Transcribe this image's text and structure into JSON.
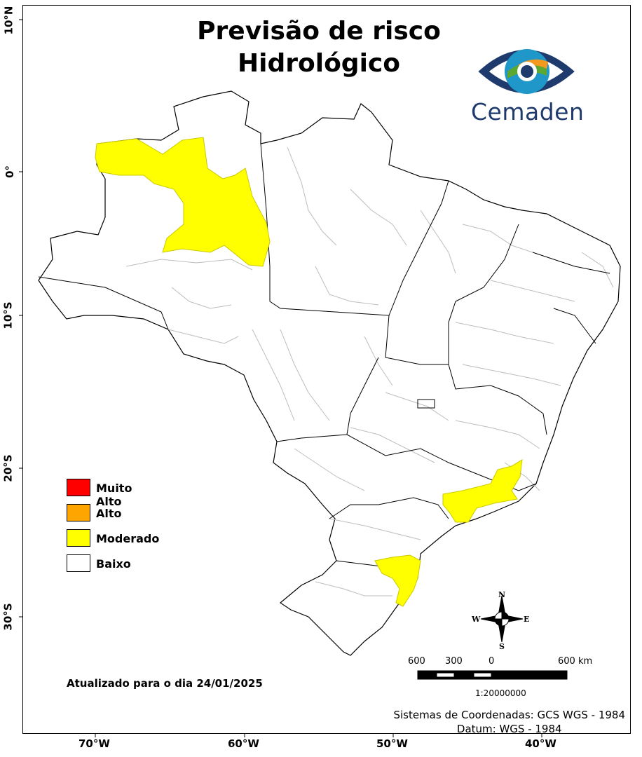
{
  "title_line1": "Previsão de risco",
  "title_line2": "Hidrológico",
  "logo": {
    "text": "Cemaden"
  },
  "legend": [
    {
      "label": "Muito Alto",
      "color": "#ff0000"
    },
    {
      "label": "Alto",
      "color": "#ffa500"
    },
    {
      "label": "Moderado",
      "color": "#ffff00"
    },
    {
      "label": "Baixo",
      "color": "#ffffff"
    }
  ],
  "updated": "Atualizado para o dia 24/01/2025",
  "scale": {
    "labels": [
      "600",
      "300",
      "0",
      "600 km"
    ],
    "ratio": "1:20000000"
  },
  "compass": {
    "n": "N",
    "s": "S",
    "e": "E",
    "w": "W"
  },
  "coordinate_system": {
    "line1": "Sistemas de Coordenadas: GCS WGS - 1984",
    "line2": "Datum: WGS - 1984"
  },
  "axes": {
    "lon_ticks": [
      "70°W",
      "60°W",
      "50°W",
      "40°W"
    ],
    "lat_ticks": [
      "10°N",
      "0°",
      "10°S",
      "20°S",
      "30°S"
    ]
  },
  "risk_areas": [
    {
      "region": "Amazonas (noroeste)",
      "level": "Moderado"
    },
    {
      "region": "Rio de Janeiro / São Paulo",
      "level": "Moderado"
    },
    {
      "region": "Santa Catarina",
      "level": "Moderado"
    }
  ]
}
